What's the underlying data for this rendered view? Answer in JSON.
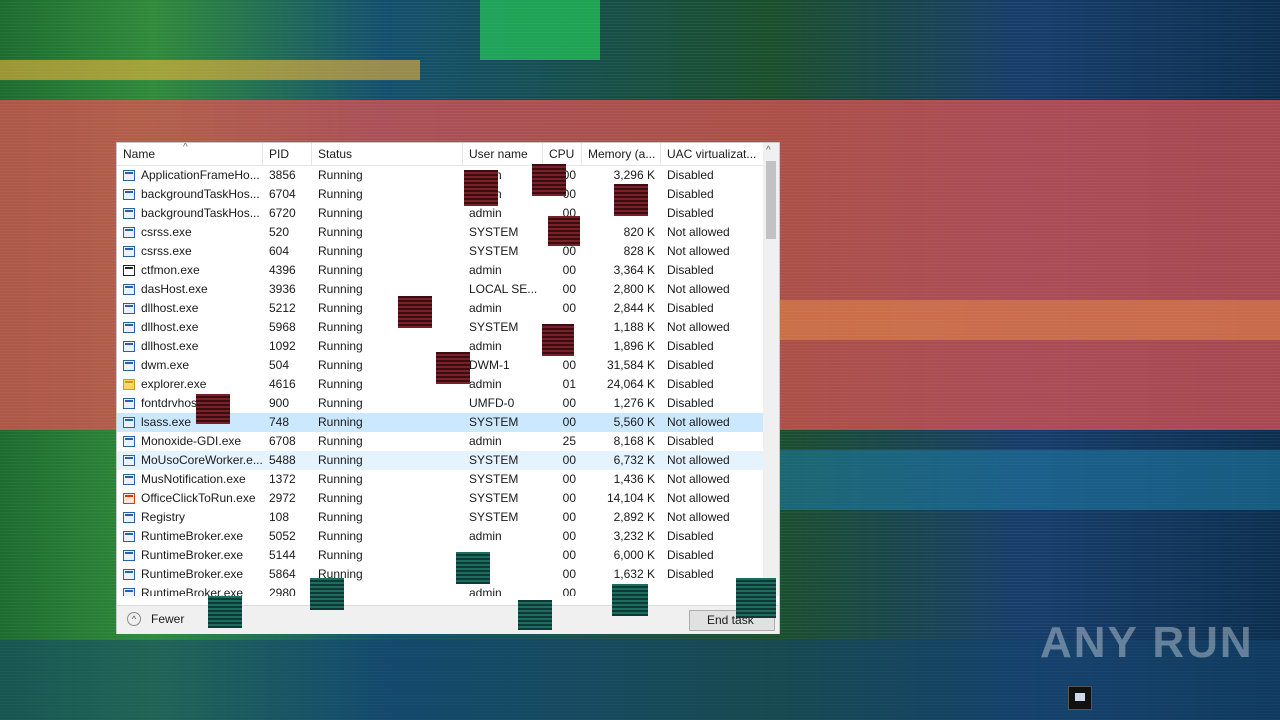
{
  "columns": [
    "Name",
    "PID",
    "Status",
    "User name",
    "CPU",
    "Memory (a...",
    "UAC virtualizat..."
  ],
  "processes": [
    {
      "name": "ApplicationFrameHo...",
      "pid": "3856",
      "status": "Running",
      "user": "admin",
      "cpu": "00",
      "memory": "3,296 K",
      "uac": "Disabled",
      "icon": "app-icon"
    },
    {
      "name": "backgroundTaskHos...",
      "pid": "6704",
      "status": "Running",
      "user": "admin",
      "cpu": "00",
      "memory": "",
      "uac": "Disabled",
      "icon": "app-icon"
    },
    {
      "name": "backgroundTaskHos...",
      "pid": "6720",
      "status": "Running",
      "user": "admin",
      "cpu": "00",
      "memory": "",
      "uac": "Disabled",
      "icon": "app-icon"
    },
    {
      "name": "csrss.exe",
      "pid": "520",
      "status": "Running",
      "user": "SYSTEM",
      "cpu": "",
      "memory": "820 K",
      "uac": "Not allowed",
      "icon": "app-icon"
    },
    {
      "name": "csrss.exe",
      "pid": "604",
      "status": "Running",
      "user": "SYSTEM",
      "cpu": "00",
      "memory": "828 K",
      "uac": "Not allowed",
      "icon": "app-icon"
    },
    {
      "name": "ctfmon.exe",
      "pid": "4396",
      "status": "Running",
      "user": "admin",
      "cpu": "00",
      "memory": "3,364 K",
      "uac": "Disabled",
      "icon": "pen-icon"
    },
    {
      "name": "dasHost.exe",
      "pid": "3936",
      "status": "Running",
      "user": "LOCAL SE...",
      "cpu": "00",
      "memory": "2,800 K",
      "uac": "Not allowed",
      "icon": "app-icon"
    },
    {
      "name": "dllhost.exe",
      "pid": "5212",
      "status": "Running",
      "user": "admin",
      "cpu": "00",
      "memory": "2,844 K",
      "uac": "Disabled",
      "icon": "app-icon"
    },
    {
      "name": "dllhost.exe",
      "pid": "5968",
      "status": "Running",
      "user": "SYSTEM",
      "cpu": "",
      "memory": "1,188 K",
      "uac": "Not allowed",
      "icon": "app-icon"
    },
    {
      "name": "dllhost.exe",
      "pid": "1092",
      "status": "Running",
      "user": "admin",
      "cpu": "",
      "memory": "1,896 K",
      "uac": "Disabled",
      "icon": "app-icon"
    },
    {
      "name": "dwm.exe",
      "pid": "504",
      "status": "Running",
      "user": "DWM-1",
      "cpu": "00",
      "memory": "31,584 K",
      "uac": "Disabled",
      "icon": "app-icon"
    },
    {
      "name": "explorer.exe",
      "pid": "4616",
      "status": "Running",
      "user": "admin",
      "cpu": "01",
      "memory": "24,064 K",
      "uac": "Disabled",
      "icon": "folder-icon"
    },
    {
      "name": "fontdrvhos",
      "pid": "900",
      "status": "Running",
      "user": "UMFD-0",
      "cpu": "00",
      "memory": "1,276 K",
      "uac": "Disabled",
      "icon": "app-icon"
    },
    {
      "name": "lsass.exe",
      "pid": "748",
      "status": "Running",
      "user": "SYSTEM",
      "cpu": "00",
      "memory": "5,560 K",
      "uac": "Not allowed",
      "icon": "app-icon",
      "selected": true
    },
    {
      "name": "Monoxide-GDI.exe",
      "pid": "6708",
      "status": "Running",
      "user": "admin",
      "cpu": "25",
      "memory": "8,168 K",
      "uac": "Disabled",
      "icon": "app-icon"
    },
    {
      "name": "MoUsoCoreWorker.e...",
      "pid": "5488",
      "status": "Running",
      "user": "SYSTEM",
      "cpu": "00",
      "memory": "6,732 K",
      "uac": "Not allowed",
      "icon": "app-icon",
      "hover": true
    },
    {
      "name": "MusNotification.exe",
      "pid": "1372",
      "status": "Running",
      "user": "SYSTEM",
      "cpu": "00",
      "memory": "1,436 K",
      "uac": "Not allowed",
      "icon": "app-icon"
    },
    {
      "name": "OfficeClickToRun.exe",
      "pid": "2972",
      "status": "Running",
      "user": "SYSTEM",
      "cpu": "00",
      "memory": "14,104 K",
      "uac": "Not allowed",
      "icon": "office-icon"
    },
    {
      "name": "Registry",
      "pid": "108",
      "status": "Running",
      "user": "SYSTEM",
      "cpu": "00",
      "memory": "2,892 K",
      "uac": "Not allowed",
      "icon": "app-icon"
    },
    {
      "name": "RuntimeBroker.exe",
      "pid": "5052",
      "status": "Running",
      "user": "admin",
      "cpu": "00",
      "memory": "3,232 K",
      "uac": "Disabled",
      "icon": "app-icon"
    },
    {
      "name": "RuntimeBroker.exe",
      "pid": "5144",
      "status": "Running",
      "user": "",
      "cpu": "00",
      "memory": "6,000 K",
      "uac": "Disabled",
      "icon": "app-icon"
    },
    {
      "name": "RuntimeBroker.exe",
      "pid": "5864",
      "status": "Running",
      "user": "",
      "cpu": "00",
      "memory": "1,632 K",
      "uac": "Disabled",
      "icon": "app-icon"
    },
    {
      "name": "RuntimeBroker.exe",
      "pid": "2980",
      "status": "",
      "user": "admin",
      "cpu": "00",
      "memory": "",
      "uac": "",
      "icon": "app-icon"
    }
  ],
  "footer": {
    "fewer_label": "Fewer",
    "end_task_label": "End task"
  },
  "watermark": "ANY RUN"
}
